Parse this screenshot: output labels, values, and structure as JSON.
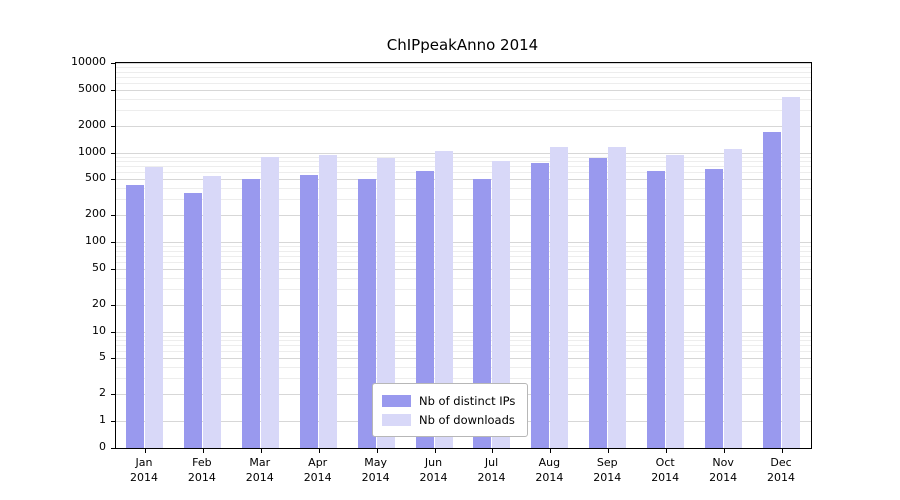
{
  "page": {
    "background": "#ffffff"
  },
  "chart_data": {
    "type": "bar",
    "title": "ChIPpeakAnno 2014",
    "yscale": "log",
    "grid": true,
    "legend_position": "lower center",
    "ylim": [
      0,
      10000
    ],
    "yticks": [
      0,
      1,
      2,
      5,
      10,
      20,
      50,
      100,
      200,
      500,
      1000,
      2000,
      5000,
      10000
    ],
    "categories": [
      "Jan",
      "Feb",
      "Mar",
      "Apr",
      "May",
      "Jun",
      "Jul",
      "Aug",
      "Sep",
      "Oct",
      "Nov",
      "Dec"
    ],
    "year_label": "2014",
    "series": [
      {
        "name": "Nb of distinct IPs",
        "color": "#9999ee",
        "values": [
          430,
          355,
          500,
          565,
          510,
          630,
          500,
          770,
          880,
          630,
          655,
          1700
        ]
      },
      {
        "name": "Nb of downloads",
        "color": "#d8d8f8",
        "values": [
          690,
          545,
          900,
          940,
          860,
          1030,
          810,
          1150,
          1160,
          930,
          1100,
          4200
        ]
      }
    ]
  }
}
